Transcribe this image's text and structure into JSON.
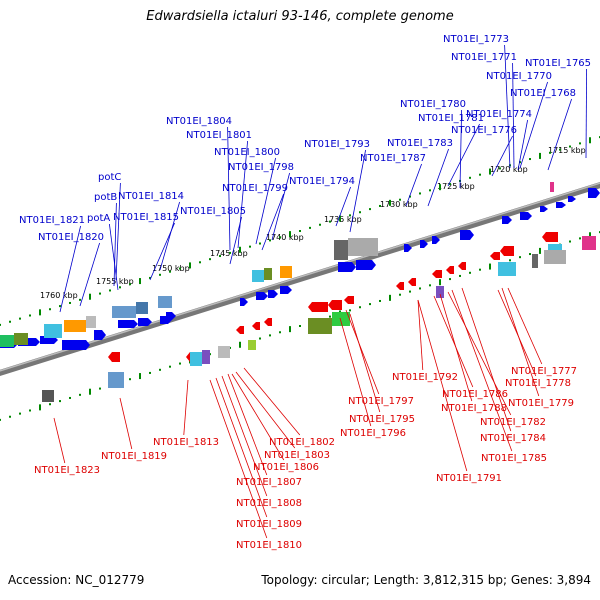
{
  "header": {
    "title": "Edwardsiella ictaluri 93-146, complete genome"
  },
  "footer": {
    "accession": "Accession: NC_012779",
    "summary": "Topology: circular; Length: 3,812,315 bp; Genes: 3,894"
  },
  "colors": {
    "top_labels": "#0000cc",
    "bottom_labels": "#dd0000",
    "forward_genes": "#0000ee",
    "reverse_genes": "#ee0000",
    "backbone": "#777777",
    "tick": "#008800"
  },
  "kbp_ticks": [
    "1715 kbp",
    "1720 kbp",
    "1725 kbp",
    "1730 kbp",
    "1735 kbp",
    "1740 kbp",
    "1745 kbp",
    "1750 kbp",
    "1755 kbp",
    "1760 kbp"
  ],
  "top_labels": [
    "NT01EI_1773",
    "NT01EI_1771",
    "NT01EI_1765",
    "NT01EI_1770",
    "NT01EI_1768",
    "NT01EI_1780",
    "NT01EI_1781",
    "NT01EI_1774",
    "NT01EI_1776",
    "NT01EI_1804",
    "NT01EI_1801",
    "NT01EI_1793",
    "NT01EI_1783",
    "NT01EI_1800",
    "NT01EI_1787",
    "NT01EI_1798",
    "potC",
    "NT01EI_1794",
    "NT01EI_1799",
    "potB",
    "NT01EI_1814",
    "NT01EI_1805",
    "potA",
    "NT01EI_1815",
    "NT01EI_1821",
    "NT01EI_1820"
  ],
  "bottom_labels": [
    "NT01EI_1777",
    "NT01EI_1792",
    "NT01EI_1778",
    "NT01EI_1786",
    "NT01EI_1779",
    "NT01EI_1797",
    "NT01EI_1788",
    "NT01EI_1795",
    "NT01EI_1782",
    "NT01EI_1796",
    "NT01EI_1784",
    "NT01EI_1813",
    "NT01EI_1802",
    "NT01EI_1803",
    "NT01EI_1785",
    "NT01EI_1806",
    "NT01EI_1823",
    "NT01EI_1819",
    "NT01EI_1791",
    "NT01EI_1807",
    "NT01EI_1808",
    "NT01EI_1809",
    "NT01EI_1810"
  ]
}
